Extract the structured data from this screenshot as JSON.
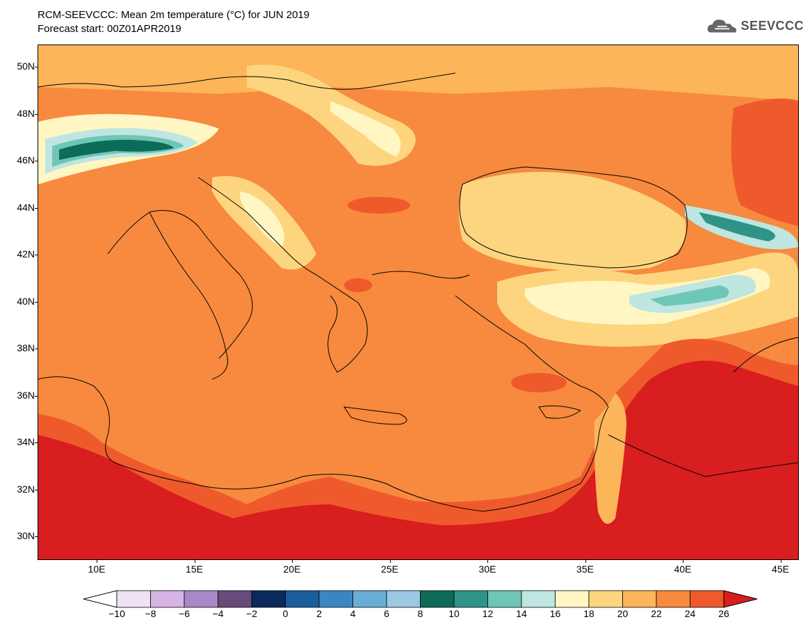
{
  "header": {
    "title": "RCM-SEEVCCC: Mean 2m temperature (°C) for JUN 2019",
    "subtitle": "Forecast start: 00Z01APR2019"
  },
  "logo": {
    "text": "SEEVCCC",
    "icon": "cloud-icon"
  },
  "map": {
    "lat_labels": [
      "50N",
      "48N",
      "46N",
      "44N",
      "42N",
      "40N",
      "38N",
      "36N",
      "34N",
      "32N",
      "30N"
    ],
    "lon_labels": [
      "10E",
      "15E",
      "20E",
      "25E",
      "30E",
      "35E",
      "40E",
      "45E"
    ]
  },
  "colorbar": {
    "tick_labels": [
      "−10",
      "−8",
      "−6",
      "−4",
      "−2",
      "0",
      "2",
      "4",
      "6",
      "8",
      "10",
      "12",
      "14",
      "16",
      "18",
      "20",
      "22",
      "24",
      "26"
    ],
    "colors": [
      "#ffffff",
      "#efe3f3",
      "#d6b4e4",
      "#a888c6",
      "#6a4a78",
      "#0b2a5c",
      "#1a5e9e",
      "#3a86c2",
      "#6aaed8",
      "#9cc8e4",
      "#0d6b5a",
      "#2f9487",
      "#6ec6b6",
      "#bfe6e0",
      "#fff6c4",
      "#fdd57e",
      "#fdb55a",
      "#f78a3e",
      "#ef5a2c",
      "#d81e1e"
    ],
    "accent_warm": "#f78a3e",
    "accent_hot": "#e0261e"
  }
}
